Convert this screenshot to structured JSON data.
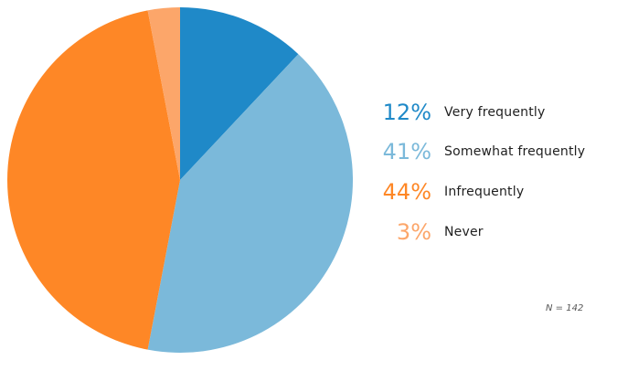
{
  "chart_data": {
    "type": "pie",
    "title": "",
    "slices": [
      {
        "label": "Very frequently",
        "value": 12,
        "display": "12%",
        "color": "#1f89c8"
      },
      {
        "label": "Somewhat frequently",
        "value": 41,
        "display": "41%",
        "color": "#7bb9da"
      },
      {
        "label": "Infrequently",
        "value": 44,
        "display": "44%",
        "color": "#fe8726"
      },
      {
        "label": "Never",
        "value": 3,
        "display": "3%",
        "color": "#fca66a"
      }
    ],
    "start_angle_deg": 0,
    "direction": "clockwise",
    "legend_position": "right",
    "note": "N = 142"
  }
}
